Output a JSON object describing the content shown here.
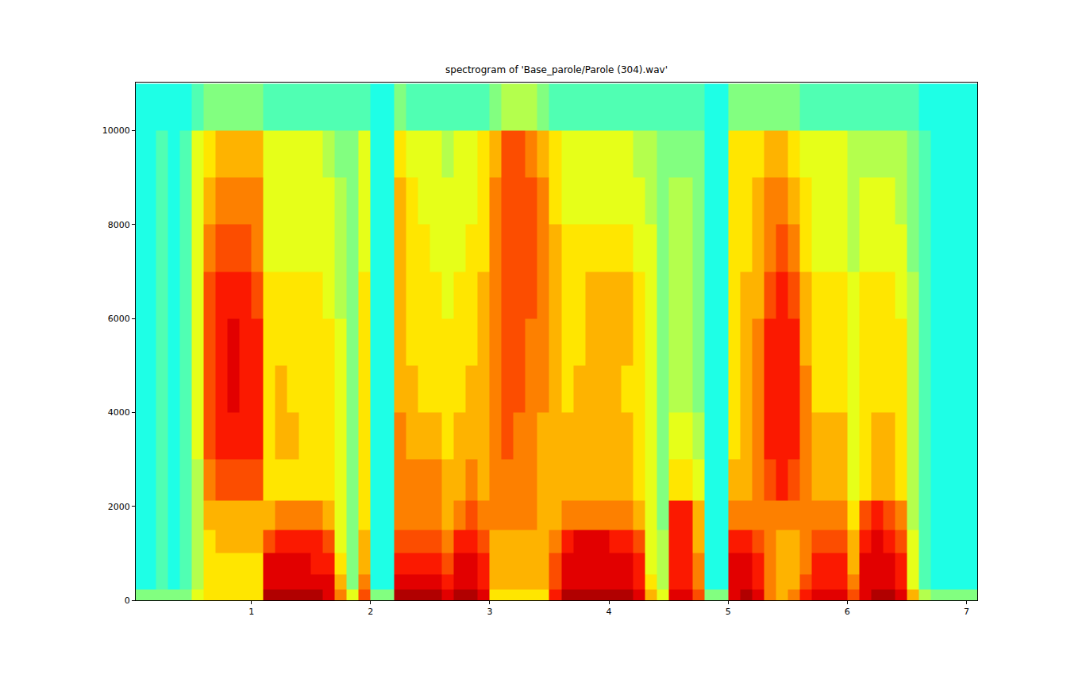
{
  "chart_data": {
    "type": "heatmap",
    "title": "spectrogram of 'Base_parole/Parole (304).wav'",
    "xlim": [
      0.03,
      7.09
    ],
    "xticks": [
      1,
      2,
      3,
      4,
      5,
      6,
      7
    ],
    "ylim": [
      0,
      11025
    ],
    "yticks": [
      0,
      2000,
      4000,
      6000,
      8000,
      10000
    ],
    "zlim": [
      0,
      10
    ],
    "x": [
      0.05,
      0.15,
      0.25,
      0.35,
      0.45,
      0.55,
      0.65,
      0.75,
      0.85,
      0.95,
      1.05,
      1.15,
      1.25,
      1.35,
      1.45,
      1.55,
      1.65,
      1.75,
      1.85,
      1.95,
      2.05,
      2.15,
      2.25,
      2.35,
      2.45,
      2.55,
      2.65,
      2.75,
      2.85,
      2.95,
      3.05,
      3.15,
      3.25,
      3.35,
      3.45,
      3.55,
      3.65,
      3.75,
      3.85,
      3.95,
      4.05,
      4.15,
      4.25,
      4.35,
      4.45,
      4.55,
      4.65,
      4.75,
      4.85,
      4.95,
      5.05,
      5.15,
      5.25,
      5.35,
      5.45,
      5.55,
      5.65,
      5.75,
      5.85,
      5.95,
      6.05,
      6.15,
      6.25,
      6.35,
      6.45,
      6.55,
      6.65,
      6.75,
      6.85,
      6.95,
      7.05
    ],
    "y": [
      100,
      350,
      750,
      1250,
      1750,
      2500,
      3500,
      4500,
      5500,
      6500,
      7500,
      8500,
      9500,
      10500
    ],
    "z_by_x": [
      [
        5,
        4,
        4,
        4,
        4,
        4,
        4,
        4,
        4,
        4,
        4,
        4,
        4,
        4
      ],
      [
        5,
        4,
        4,
        4,
        4,
        4,
        4,
        4,
        4,
        4,
        4,
        4,
        4,
        4
      ],
      [
        5,
        4.5,
        4.5,
        4.5,
        4.5,
        4.5,
        4.5,
        4.5,
        4.5,
        4.5,
        4.5,
        4.5,
        4.5,
        4
      ],
      [
        5,
        4,
        4,
        4,
        4,
        4,
        4,
        4,
        4,
        4,
        4,
        4,
        4,
        4
      ],
      [
        5,
        4.5,
        4.5,
        4.5,
        4.5,
        4.5,
        4.5,
        4.5,
        4.5,
        4.5,
        4.5,
        4.5,
        4.5,
        4
      ],
      [
        6,
        5.5,
        5.5,
        5.5,
        5.5,
        5.5,
        6,
        6,
        6,
        6,
        6,
        6,
        6,
        4.5
      ],
      [
        6.5,
        6.5,
        6.5,
        6.5,
        7,
        7.5,
        8,
        8,
        8,
        8,
        7.5,
        7,
        6.5,
        5
      ],
      [
        6.5,
        6.5,
        6.5,
        7,
        7,
        8,
        8.5,
        8.5,
        8.5,
        8.5,
        8,
        7.5,
        7,
        5
      ],
      [
        6.5,
        6.5,
        6.5,
        7,
        7,
        8,
        8.5,
        9,
        9,
        8.5,
        8,
        7.5,
        7,
        5
      ],
      [
        6.5,
        6.5,
        6.5,
        7,
        7,
        8,
        8.5,
        8.5,
        8.5,
        8.5,
        8,
        7.5,
        7,
        5
      ],
      [
        6.5,
        6.5,
        6.5,
        7,
        7,
        8,
        8.5,
        8.5,
        8.5,
        8,
        7.5,
        7.5,
        7,
        5
      ],
      [
        9.5,
        9,
        9,
        8,
        7,
        6.5,
        6.5,
        6.5,
        6.5,
        6.5,
        6,
        6,
        6,
        4.5
      ],
      [
        9.5,
        9,
        9,
        8.5,
        7.5,
        6.5,
        7,
        7,
        6.5,
        6.5,
        6,
        6,
        6,
        4.5
      ],
      [
        9.5,
        9,
        9,
        8.5,
        7.5,
        6.5,
        7,
        6.5,
        6.5,
        6.5,
        6,
        6,
        6,
        4.5
      ],
      [
        9.5,
        9,
        9,
        8.5,
        7.5,
        6.5,
        6.5,
        6.5,
        6.5,
        6.5,
        6,
        6,
        6,
        4.5
      ],
      [
        9.5,
        9,
        8.5,
        8.5,
        7.5,
        6.5,
        6.5,
        6.5,
        6.5,
        6.5,
        6,
        6,
        6,
        4.5
      ],
      [
        9,
        9,
        8.5,
        8,
        7,
        6.5,
        6.5,
        6.5,
        6.5,
        6,
        6,
        6,
        5.5,
        4.5
      ],
      [
        7.5,
        7,
        6.5,
        6,
        6,
        6,
        6,
        6,
        6,
        5.5,
        5.5,
        5.5,
        5,
        4.5
      ],
      [
        6,
        5,
        5,
        5,
        5,
        5,
        5,
        5,
        5,
        5,
        5,
        5,
        5,
        4.5
      ],
      [
        8,
        7.5,
        7,
        7,
        6.5,
        6.5,
        6.5,
        6.5,
        6.5,
        6.5,
        6,
        6,
        6,
        4.5
      ],
      [
        5,
        4,
        4,
        4,
        4,
        4,
        4,
        4,
        4,
        4,
        4,
        4,
        4,
        4
      ],
      [
        5,
        4,
        4,
        4,
        4,
        4,
        4,
        4,
        4,
        4,
        4,
        4,
        4,
        4
      ],
      [
        9.5,
        9,
        8.5,
        8,
        7.5,
        7.5,
        7.5,
        7,
        7,
        7,
        7,
        7,
        6.5,
        5
      ],
      [
        9.5,
        9,
        8.5,
        8,
        7.5,
        7.5,
        7,
        7,
        6.5,
        6.5,
        6.5,
        6.5,
        6,
        4.5
      ],
      [
        9.5,
        9,
        8.5,
        8,
        7.5,
        7.5,
        7,
        6.5,
        6.5,
        6.5,
        6.5,
        6,
        6,
        4.5
      ],
      [
        9.5,
        9,
        8.5,
        8,
        7.5,
        7.5,
        7,
        6.5,
        6.5,
        6.5,
        6,
        6,
        6,
        4.5
      ],
      [
        9,
        8.5,
        8,
        7.5,
        7,
        7,
        6.5,
        6.5,
        6.5,
        6,
        6,
        6,
        5.5,
        4.5
      ],
      [
        9.5,
        9,
        9,
        8.5,
        7.5,
        7,
        7,
        6.5,
        6.5,
        6.5,
        6,
        6,
        6,
        4.5
      ],
      [
        9.5,
        9,
        9,
        8.5,
        8,
        7.5,
        7,
        7,
        6.5,
        6.5,
        6.5,
        6,
        6,
        4.5
      ],
      [
        9,
        8.5,
        8.5,
        8,
        7.5,
        7,
        7,
        7,
        7,
        7,
        6.5,
        6.5,
        6.5,
        4.5
      ],
      [
        6.5,
        7,
        7,
        7,
        7.5,
        7.5,
        7.5,
        7.5,
        7.5,
        7.5,
        7.5,
        7.5,
        7,
        5
      ],
      [
        6.5,
        7,
        7,
        7,
        7.5,
        7.5,
        8,
        8,
        8,
        8,
        8,
        8,
        8,
        5.5
      ],
      [
        6.5,
        7,
        7,
        7,
        7.5,
        7.5,
        7.5,
        8,
        8,
        8,
        8,
        8,
        8,
        5.5
      ],
      [
        6.5,
        7,
        7,
        7,
        7.5,
        7.5,
        7.5,
        7.5,
        7.5,
        8,
        8,
        8,
        7.5,
        5.5
      ],
      [
        6.5,
        7,
        7,
        7,
        7,
        7,
        7,
        7.5,
        7.5,
        7.5,
        7.5,
        7.5,
        7,
        5
      ],
      [
        8.5,
        8,
        8,
        7.5,
        7,
        7,
        7,
        7,
        7,
        7,
        7,
        6.5,
        6.5,
        4.5
      ],
      [
        9.5,
        9,
        9,
        8.5,
        7.5,
        7,
        7,
        6.5,
        6.5,
        6.5,
        6.5,
        6,
        6,
        4.5
      ],
      [
        9.5,
        9,
        9,
        9,
        7.5,
        7,
        7,
        7,
        6.5,
        6.5,
        6.5,
        6,
        6,
        4.5
      ],
      [
        9.5,
        9,
        9,
        9,
        7.5,
        7,
        7,
        7,
        7,
        7,
        6.5,
        6,
        6,
        4.5
      ],
      [
        9.5,
        9,
        9,
        9,
        7.5,
        7,
        7,
        7,
        7,
        7,
        6.5,
        6,
        6,
        4.5
      ],
      [
        9.5,
        9,
        9,
        8.5,
        7.5,
        7,
        7,
        7,
        7,
        7,
        6.5,
        6,
        6,
        4.5
      ],
      [
        9.5,
        9,
        9,
        8.5,
        7.5,
        7,
        7,
        6.5,
        7,
        7,
        6.5,
        6,
        6,
        4.5
      ],
      [
        9,
        8.5,
        8.5,
        8,
        7,
        6.5,
        6.5,
        6.5,
        6.5,
        6.5,
        6,
        6,
        5.5,
        4.5
      ],
      [
        7,
        6.5,
        6,
        6,
        6,
        6,
        6,
        6,
        6,
        6,
        6,
        5.5,
        5.5,
        4.5
      ],
      [
        6,
        5.5,
        5.5,
        5.5,
        5,
        5,
        5,
        5,
        5,
        5,
        5,
        5,
        5,
        4.5
      ],
      [
        9,
        8.5,
        8.5,
        8.5,
        8.5,
        6.5,
        6,
        5.5,
        5.5,
        5.5,
        5.5,
        5.5,
        5,
        4.5
      ],
      [
        9,
        8.5,
        8.5,
        8.5,
        8.5,
        6.5,
        6,
        5.5,
        5.5,
        5.5,
        5.5,
        5.5,
        5,
        4.5
      ],
      [
        8,
        7.5,
        7.5,
        7,
        7,
        6,
        5.5,
        5,
        5,
        5,
        5,
        5,
        5,
        4.5
      ],
      [
        5,
        4,
        4,
        4,
        4,
        4,
        4,
        4,
        4,
        4,
        4,
        4,
        4,
        4
      ],
      [
        5,
        4,
        4,
        4,
        4,
        4,
        4,
        4,
        4,
        4,
        4,
        4,
        4,
        4
      ],
      [
        9,
        9,
        9,
        8.5,
        7.5,
        7,
        6.5,
        6.5,
        6.5,
        6.5,
        6.5,
        6.5,
        6.5,
        5
      ],
      [
        9.5,
        9,
        9,
        8.5,
        7.5,
        7,
        7,
        7,
        7,
        7,
        6.5,
        6.5,
        6.5,
        5
      ],
      [
        9,
        8.5,
        8.5,
        8,
        7.5,
        7.5,
        7.5,
        7.5,
        7.5,
        7,
        7,
        7,
        6.5,
        5
      ],
      [
        7.5,
        7.5,
        7.5,
        7.5,
        7.5,
        8,
        8.5,
        8.5,
        8.5,
        8,
        7.5,
        7.5,
        7,
        5
      ],
      [
        7,
        7,
        7,
        7,
        7.5,
        8.5,
        8.5,
        8.5,
        8.5,
        8.5,
        8,
        7.5,
        7,
        5
      ],
      [
        7.5,
        7,
        7,
        7,
        7.5,
        8,
        8.5,
        8.5,
        8.5,
        8,
        7.5,
        7,
        6.5,
        5
      ],
      [
        8.5,
        8,
        7.5,
        7.5,
        7.5,
        7.5,
        7.5,
        7.5,
        7,
        7,
        6.5,
        6.5,
        6,
        4.5
      ],
      [
        9,
        8.5,
        8.5,
        8,
        7.5,
        7,
        7,
        6.5,
        6.5,
        6.5,
        6,
        6,
        6,
        4.5
      ],
      [
        9,
        8.5,
        8.5,
        8,
        7.5,
        7,
        7,
        6.5,
        6.5,
        6.5,
        6,
        6,
        6,
        4.5
      ],
      [
        9,
        8.5,
        8.5,
        8,
        7.5,
        7,
        7,
        6.5,
        6.5,
        6.5,
        6,
        6,
        6,
        4.5
      ],
      [
        8,
        7.5,
        7,
        7,
        6.5,
        6,
        6,
        6,
        6,
        6,
        5.5,
        5.5,
        5.5,
        4.5
      ],
      [
        9,
        9,
        9,
        8.5,
        8,
        6.5,
        6.5,
        6.5,
        6.5,
        6.5,
        6,
        6,
        5.5,
        4.5
      ],
      [
        9.5,
        9,
        9,
        9,
        8.5,
        7,
        7,
        6.5,
        6.5,
        6.5,
        6,
        6,
        5.5,
        4.5
      ],
      [
        9.5,
        9,
        9,
        8.5,
        8,
        7,
        7,
        6.5,
        6.5,
        6.5,
        6,
        6,
        5.5,
        4.5
      ],
      [
        9,
        8.5,
        8.5,
        8,
        7.5,
        6.5,
        6.5,
        6.5,
        6.5,
        6,
        6,
        5.5,
        5.5,
        4.5
      ],
      [
        7,
        6,
        6,
        6,
        5.5,
        5.5,
        5.5,
        5.5,
        5.5,
        5.5,
        5,
        5,
        5,
        4.5
      ],
      [
        5.5,
        4.5,
        4.5,
        4.5,
        4.5,
        4.5,
        4.5,
        4.5,
        4.5,
        4.5,
        4.5,
        4.5,
        4.5,
        4
      ],
      [
        5,
        4,
        4,
        4,
        4,
        4,
        4,
        4,
        4,
        4,
        4,
        4,
        4,
        4
      ],
      [
        5,
        4,
        4,
        4,
        4,
        4,
        4,
        4,
        4,
        4,
        4,
        4,
        4,
        4
      ],
      [
        5,
        4,
        4,
        4,
        4,
        4,
        4,
        4,
        4,
        4,
        4,
        4,
        4,
        4
      ],
      [
        5,
        4,
        4,
        4,
        4,
        4,
        4,
        4,
        4,
        4,
        4,
        4,
        4,
        4
      ]
    ]
  }
}
